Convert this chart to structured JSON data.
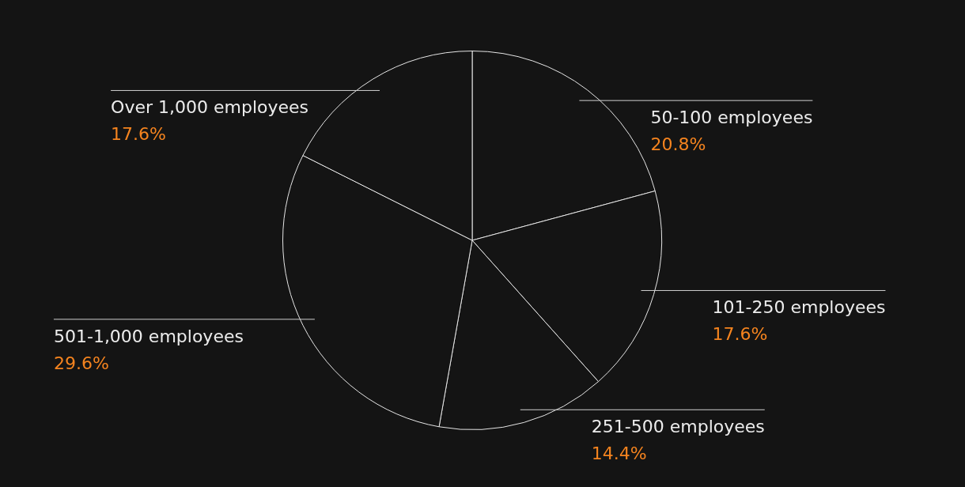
{
  "chart_data": {
    "type": "pie",
    "categories": [
      "50-100 employees",
      "101-250 employees",
      "251-500 employees",
      "501-1,000 employees",
      "Over 1,000 employees"
    ],
    "values": [
      20.8,
      17.6,
      14.4,
      29.6,
      17.6
    ],
    "colors": [
      "#141414",
      "#141414",
      "#141414",
      "#141414",
      "#141414"
    ],
    "value_labels": [
      "20.8%",
      "17.6%",
      "14.4%",
      "29.6%",
      "17.6%"
    ],
    "legend": false
  }
}
